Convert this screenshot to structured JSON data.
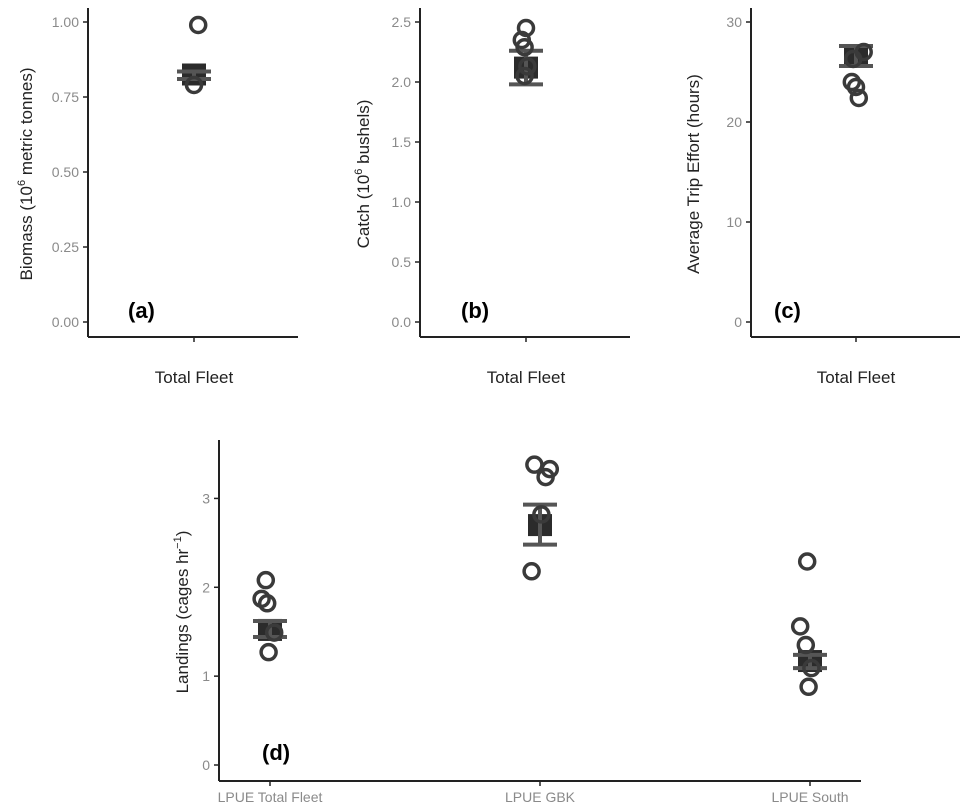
{
  "colors": {
    "point_outline": "#3a3a3a",
    "mean_marker": "#2b2b2b",
    "error_bar": "#555555",
    "point_highlight": "#a8a8a8",
    "axis": "#222222",
    "tick_label": "#8a8a8a"
  },
  "chart_data": [
    {
      "panel": "(a)",
      "type": "scatter",
      "categories": [
        "Total Fleet"
      ],
      "ylabel": {
        "pre": "Biomass (10",
        "sup": "6",
        "post": " metric tonnes)"
      },
      "ylim": [
        0,
        1.0
      ],
      "yticks": [
        "0.00",
        "0.25",
        "0.50",
        "0.75",
        "1.00"
      ],
      "points": [
        {
          "category": "Total Fleet",
          "offset": 0.3,
          "y": 0.99
        },
        {
          "category": "Total Fleet",
          "offset": 0.0,
          "y": 0.79
        }
      ],
      "means": [
        {
          "category": "Total Fleet",
          "y": 0.825,
          "lower": 0.81,
          "upper": 0.835
        }
      ]
    },
    {
      "panel": "(b)",
      "type": "scatter",
      "categories": [
        "Total Fleet"
      ],
      "ylabel": {
        "pre": "Catch (10",
        "sup": "6",
        "post": " bushels)"
      },
      "ylim": [
        0,
        2.5
      ],
      "yticks": [
        "0.0",
        "0.5",
        "1.0",
        "1.5",
        "2.0",
        "2.5"
      ],
      "points": [
        {
          "category": "Total Fleet",
          "offset": 0.0,
          "y": 2.45
        },
        {
          "category": "Total Fleet",
          "offset": -0.3,
          "y": 2.35
        },
        {
          "category": "Total Fleet",
          "offset": -0.1,
          "y": 2.29
        },
        {
          "category": "Total Fleet",
          "offset": 0.1,
          "y": 2.13
        },
        {
          "category": "Total Fleet",
          "offset": -0.1,
          "y": 2.05
        }
      ],
      "means": [
        {
          "category": "Total Fleet",
          "y": 2.12,
          "lower": 1.98,
          "upper": 2.26
        }
      ]
    },
    {
      "panel": "(c)",
      "type": "scatter",
      "categories": [
        "Total Fleet"
      ],
      "ylabel": {
        "pre": "Average Trip Effort (hours)",
        "sup": "",
        "post": ""
      },
      "ylim": [
        0,
        30
      ],
      "yticks": [
        "0",
        "10",
        "20",
        "30"
      ],
      "points": [
        {
          "category": "Total Fleet",
          "offset": 0.55,
          "y": 27.0
        },
        {
          "category": "Total Fleet",
          "offset": -0.2,
          "y": 26.3
        },
        {
          "category": "Total Fleet",
          "offset": -0.3,
          "y": 24.0
        },
        {
          "category": "Total Fleet",
          "offset": 0.0,
          "y": 23.5
        },
        {
          "category": "Total Fleet",
          "offset": 0.2,
          "y": 22.4
        }
      ],
      "means": [
        {
          "category": "Total Fleet",
          "y": 26.5,
          "lower": 25.6,
          "upper": 27.6
        }
      ]
    },
    {
      "panel": "(d)",
      "type": "scatter",
      "categories": [
        "LPUE Total Fleet",
        "LPUE GBK",
        "LPUE South"
      ],
      "ylabel": {
        "pre": "Landings (cages hr",
        "sup": "−1",
        "post": ")"
      },
      "ylim": [
        0,
        3.5
      ],
      "yticks": [
        "0",
        "1",
        "2",
        "3"
      ],
      "points": [
        {
          "category": "LPUE Total Fleet",
          "offset": -0.3,
          "y": 2.08
        },
        {
          "category": "LPUE Total Fleet",
          "offset": -0.6,
          "y": 1.87
        },
        {
          "category": "LPUE Total Fleet",
          "offset": -0.2,
          "y": 1.82
        },
        {
          "category": "LPUE Total Fleet",
          "offset": 0.3,
          "y": 1.49
        },
        {
          "category": "LPUE Total Fleet",
          "offset": -0.1,
          "y": 1.27
        },
        {
          "category": "LPUE GBK",
          "offset": -0.4,
          "y": 3.38
        },
        {
          "category": "LPUE GBK",
          "offset": 0.7,
          "y": 3.33
        },
        {
          "category": "LPUE GBK",
          "offset": 0.4,
          "y": 3.24
        },
        {
          "category": "LPUE GBK",
          "offset": 0.1,
          "y": 2.82
        },
        {
          "category": "LPUE GBK",
          "offset": -0.6,
          "y": 2.18
        },
        {
          "category": "LPUE South",
          "offset": -0.2,
          "y": 2.29
        },
        {
          "category": "LPUE South",
          "offset": -0.7,
          "y": 1.56
        },
        {
          "category": "LPUE South",
          "offset": -0.3,
          "y": 1.35
        },
        {
          "category": "LPUE South",
          "offset": 0.1,
          "y": 1.09
        },
        {
          "category": "LPUE South",
          "offset": -0.1,
          "y": 0.88
        }
      ],
      "means": [
        {
          "category": "LPUE Total Fleet",
          "y": 1.52,
          "lower": 1.44,
          "upper": 1.62
        },
        {
          "category": "LPUE GBK",
          "y": 2.7,
          "lower": 2.48,
          "upper": 2.93
        },
        {
          "category": "LPUE South",
          "y": 1.17,
          "lower": 1.09,
          "upper": 1.24
        }
      ]
    }
  ]
}
